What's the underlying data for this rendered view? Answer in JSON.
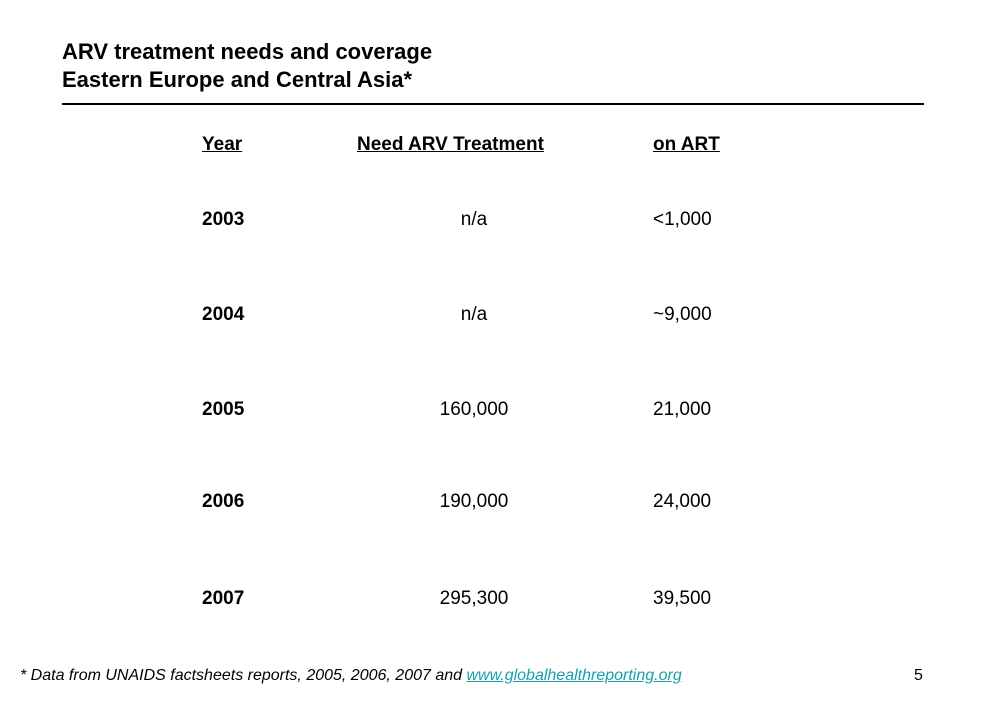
{
  "slide": {
    "title_line1": "ARV treatment needs and coverage",
    "title_line2": "Eastern Europe and Central Asia*",
    "page_number": "5"
  },
  "table": {
    "headers": [
      "Year",
      "Need ARV Treatment",
      "on ART"
    ],
    "rows": [
      [
        "2003",
        "n/a",
        "<1,000"
      ],
      [
        "2004",
        "n/a",
        "~9,000"
      ],
      [
        "2005",
        "160,000",
        "21,000"
      ],
      [
        "2006",
        "190,000",
        "24,000"
      ],
      [
        "2007",
        "295,300",
        "39,500"
      ]
    ]
  },
  "footnote": {
    "text": "* Data from UNAIDS factsheets reports, 2005, 2006, 2007 and ",
    "link_text": "www.globalhealthreporting.org",
    "link_color": "#18a0a8"
  }
}
